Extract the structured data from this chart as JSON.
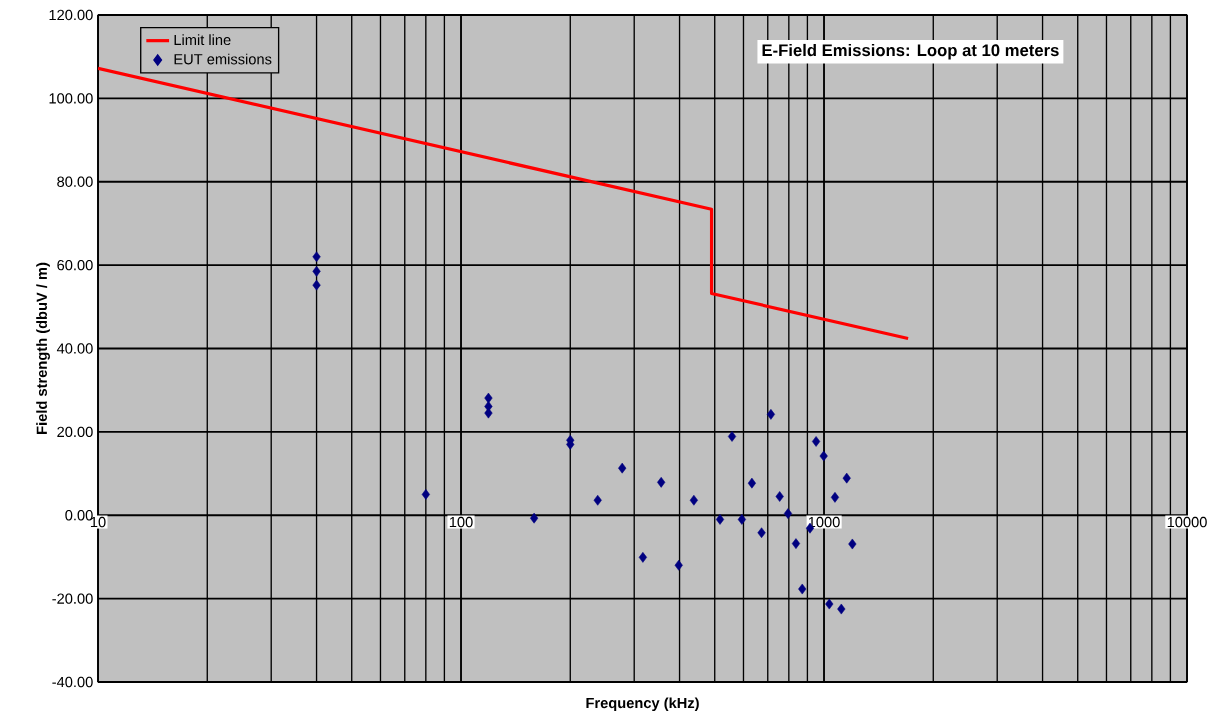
{
  "chart_data": {
    "type": "scatter",
    "title": "E-Field Emissions: Loop at 10 meters",
    "xlabel": "Frequency (kHz)",
    "ylabel": "Field strength (dbuV / m)",
    "log": "x",
    "xlim": [
      10,
      10000
    ],
    "xticks": [
      10,
      100,
      1000,
      10000
    ],
    "ylim": [
      -40,
      120
    ],
    "yticks": [
      {
        "value": -40,
        "label": "-40.00"
      },
      {
        "value": -20,
        "label": "-20.00"
      },
      {
        "value": 0,
        "label": "0.00"
      },
      {
        "value": 20,
        "label": "20.00"
      },
      {
        "value": 40,
        "label": "40.00"
      },
      {
        "value": 60,
        "label": "60.00"
      },
      {
        "value": 80,
        "label": "80.00"
      },
      {
        "value": 100,
        "label": "100.00"
      },
      {
        "value": 120,
        "label": "120.00"
      }
    ],
    "grid": true,
    "legend": "top left",
    "series": [
      {
        "name": "Limit line",
        "type": "line",
        "color": "#ff0000",
        "marker": "none",
        "x": [
          10,
          490,
          490,
          1705
        ],
        "values": [
          107.2,
          73.4,
          53.2,
          42.4
        ]
      },
      {
        "name": "EUT emissions",
        "type": "scatter",
        "color": "#000080",
        "marker": "diamond",
        "x": [
          40,
          40,
          40,
          80,
          119,
          119,
          119,
          159,
          200,
          200,
          238,
          278,
          317,
          356,
          398,
          438,
          517,
          558,
          594,
          633,
          673,
          714,
          755,
          796,
          837,
          871,
          915,
          951,
          998,
          1034,
          1072,
          1116,
          1155,
          1197
        ],
        "values": [
          62,
          58.5,
          55.2,
          5.0,
          28.1,
          26.1,
          24.5,
          -0.7,
          18.0,
          17.0,
          3.6,
          11.3,
          -10.1,
          7.9,
          -12.0,
          3.6,
          -1.0,
          18.9,
          -1.0,
          7.7,
          -4.2,
          24.2,
          4.5,
          0.4,
          -6.8,
          -17.7,
          -3.1,
          17.7,
          14.2,
          -21.3,
          4.3,
          -22.5,
          8.9,
          -6.9
        ]
      }
    ]
  }
}
